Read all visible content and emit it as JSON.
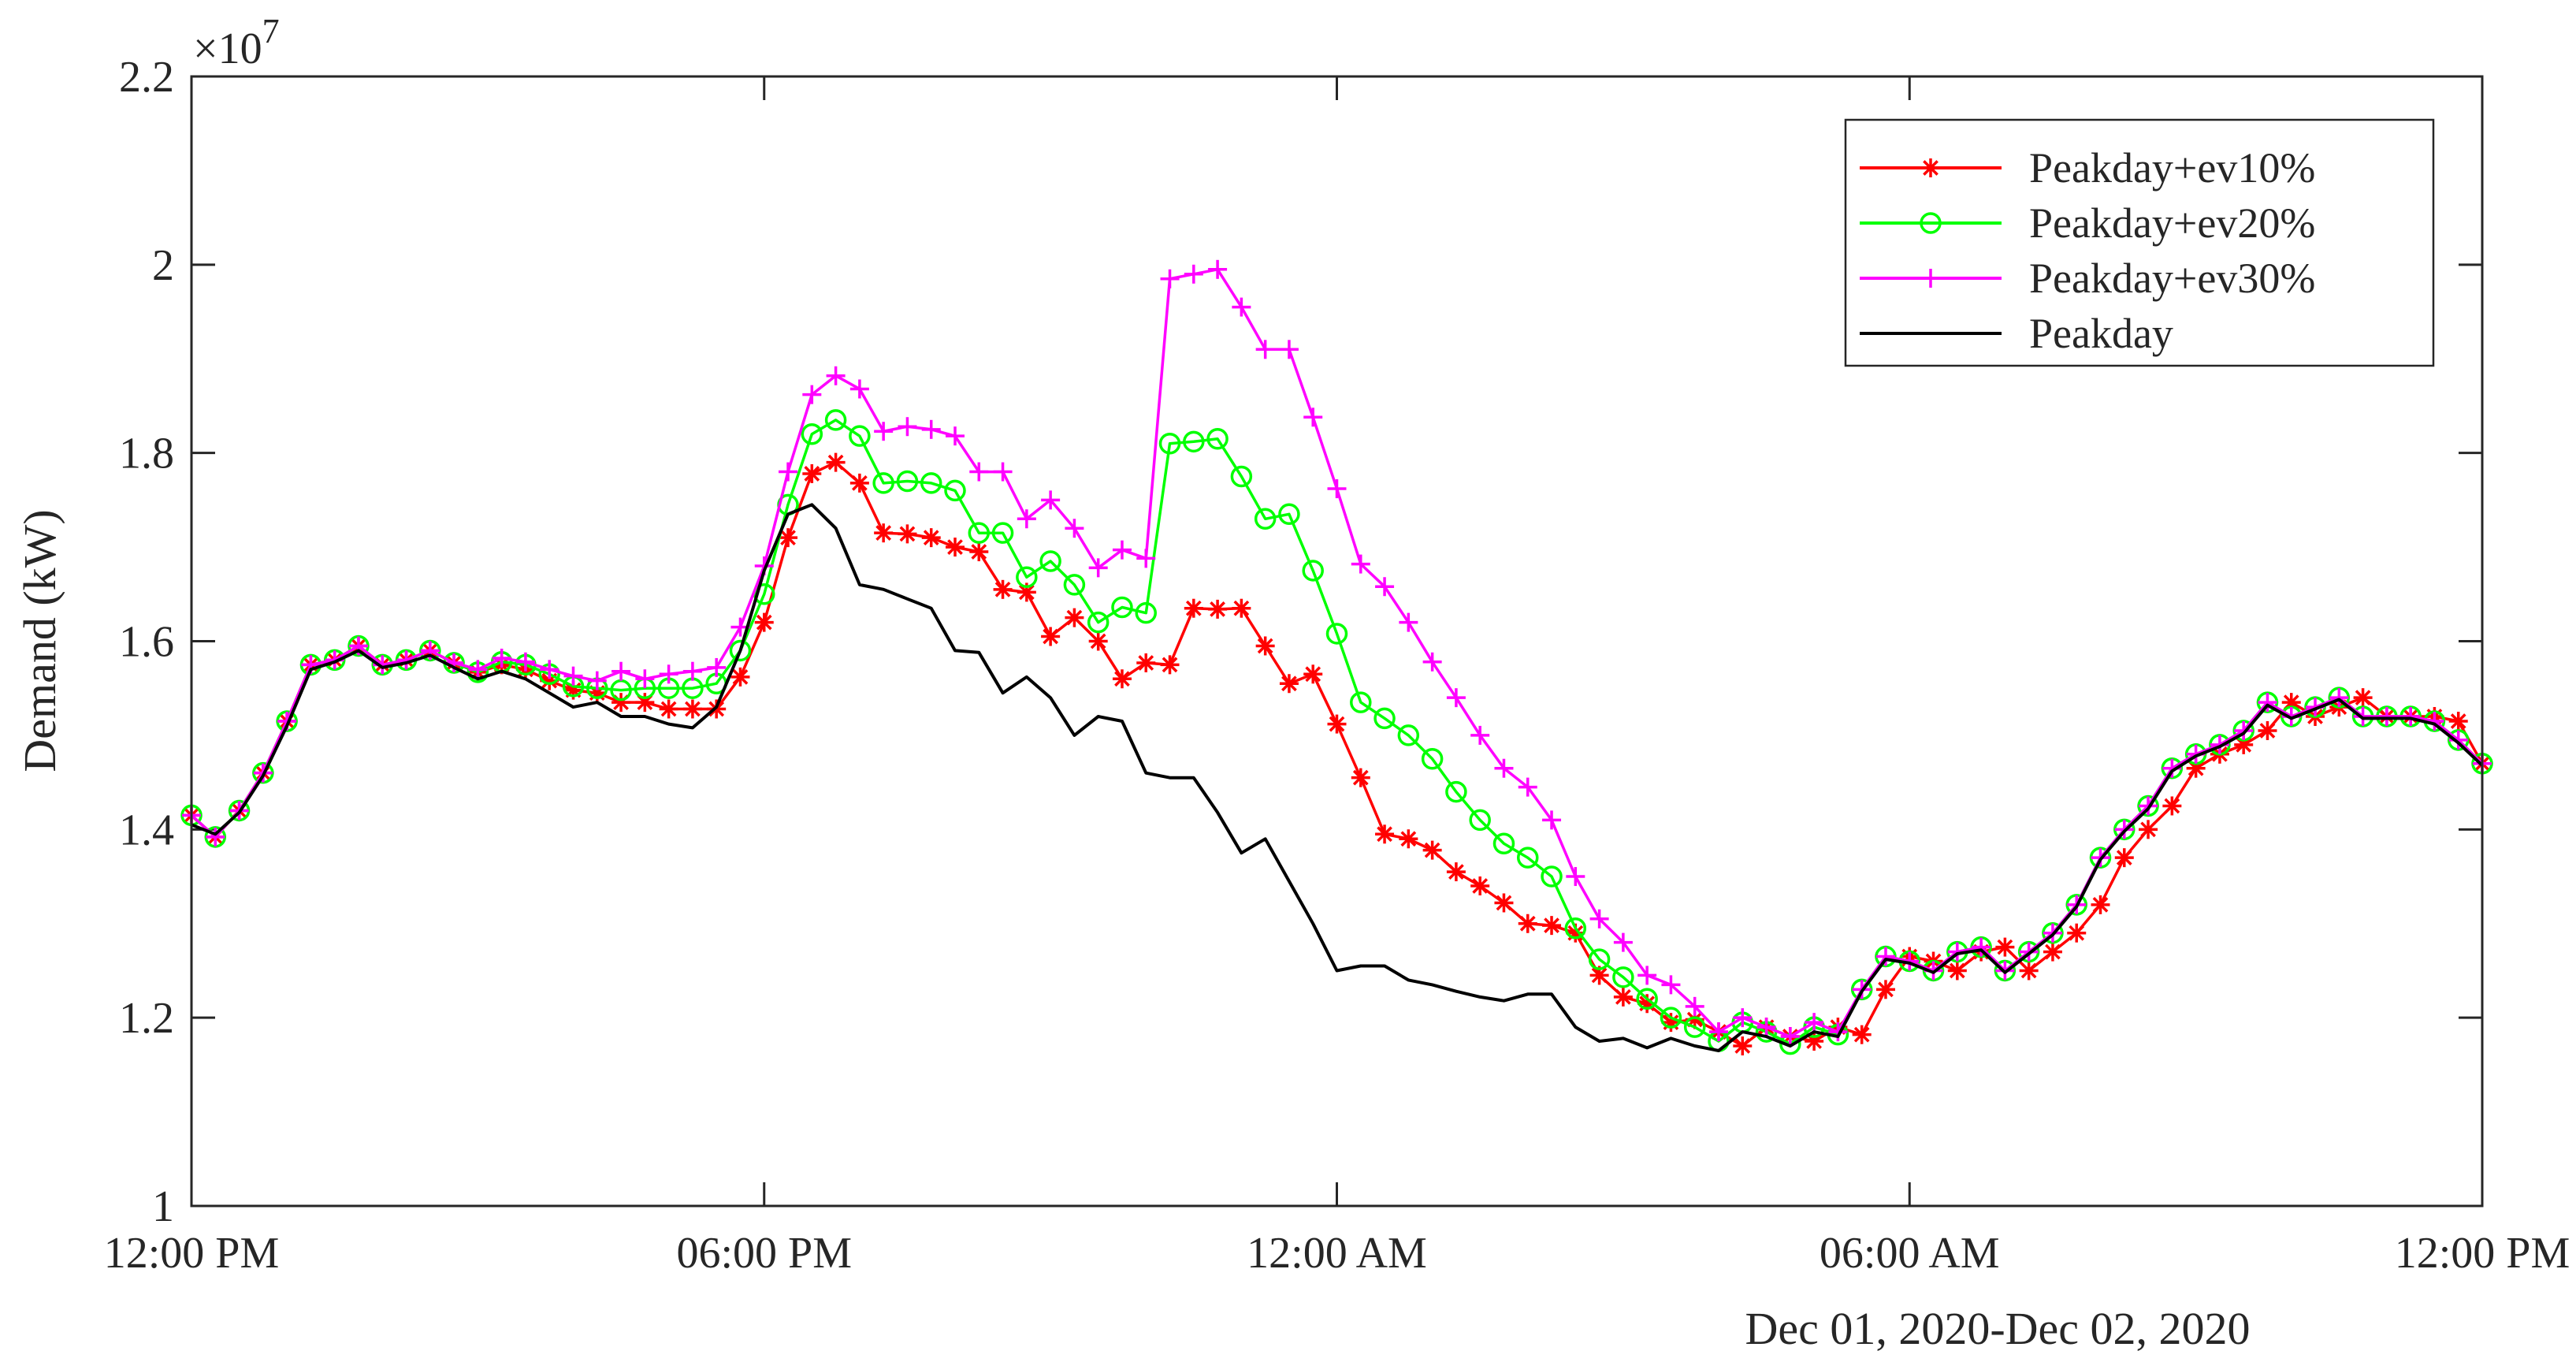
{
  "chart_data": {
    "type": "line",
    "title": "",
    "xlabel": "Dec 01, 2020-Dec 02, 2020",
    "ylabel": "Demand (kW)",
    "y_multiplier_label": "×10",
    "y_multiplier_exponent": "7",
    "xlim": [
      0,
      96
    ],
    "ylim": [
      1.0,
      2.2
    ],
    "x_ticks": [
      {
        "x": 0,
        "label": "12:00 PM"
      },
      {
        "x": 24,
        "label": "06:00 PM"
      },
      {
        "x": 48,
        "label": "12:00 AM"
      },
      {
        "x": 72,
        "label": "06:00 AM"
      },
      {
        "x": 96,
        "label": "12:00 PM"
      }
    ],
    "y_ticks": [
      {
        "y": 1.0,
        "label": "1"
      },
      {
        "y": 1.2,
        "label": "1.2"
      },
      {
        "y": 1.4,
        "label": "1.4"
      },
      {
        "y": 1.6,
        "label": "1.6"
      },
      {
        "y": 1.8,
        "label": "1.8"
      },
      {
        "y": 2.0,
        "label": "2"
      },
      {
        "y": 2.2,
        "label": "2.2"
      }
    ],
    "legend_position": "top-right",
    "series": [
      {
        "name": "Peakday+ev10%",
        "color": "#ff0000",
        "marker": "asterisk",
        "values": [
          1.415,
          1.392,
          1.42,
          1.46,
          1.515,
          1.575,
          1.58,
          1.595,
          1.575,
          1.58,
          1.59,
          1.577,
          1.567,
          1.575,
          1.57,
          1.558,
          1.548,
          1.545,
          1.535,
          1.535,
          1.528,
          1.528,
          1.528,
          1.562,
          1.62,
          1.71,
          1.778,
          1.79,
          1.768,
          1.715,
          1.714,
          1.71,
          1.7,
          1.695,
          1.655,
          1.652,
          1.605,
          1.625,
          1.6,
          1.56,
          1.577,
          1.575,
          1.635,
          1.634,
          1.635,
          1.595,
          1.555,
          1.565,
          1.512,
          1.455,
          1.395,
          1.39,
          1.378,
          1.355,
          1.34,
          1.322,
          1.3,
          1.298,
          1.29,
          1.245,
          1.222,
          1.215,
          1.195,
          1.198,
          1.185,
          1.17,
          1.19,
          1.18,
          1.175,
          1.19,
          1.182,
          1.23,
          1.265,
          1.26,
          1.25,
          1.27,
          1.275,
          1.25,
          1.27,
          1.29,
          1.32,
          1.37,
          1.4,
          1.425,
          1.465,
          1.48,
          1.49,
          1.505,
          1.535,
          1.52,
          1.53,
          1.54,
          1.52,
          1.52,
          1.52,
          1.515,
          1.47
        ]
      },
      {
        "name": "Peakday+ev20%",
        "color": "#00ff00",
        "marker": "circle",
        "values": [
          1.415,
          1.392,
          1.42,
          1.46,
          1.515,
          1.575,
          1.58,
          1.595,
          1.575,
          1.58,
          1.59,
          1.577,
          1.567,
          1.578,
          1.575,
          1.565,
          1.552,
          1.55,
          1.548,
          1.55,
          1.55,
          1.55,
          1.555,
          1.59,
          1.65,
          1.745,
          1.82,
          1.835,
          1.818,
          1.768,
          1.77,
          1.768,
          1.76,
          1.715,
          1.715,
          1.668,
          1.685,
          1.66,
          1.62,
          1.636,
          1.63,
          1.81,
          1.812,
          1.815,
          1.775,
          1.73,
          1.735,
          1.675,
          1.608,
          1.535,
          1.518,
          1.5,
          1.475,
          1.44,
          1.41,
          1.385,
          1.37,
          1.35,
          1.295,
          1.262,
          1.243,
          1.22,
          1.2,
          1.19,
          1.175,
          1.195,
          1.185,
          1.172,
          1.19,
          1.182,
          1.23,
          1.265,
          1.26,
          1.25,
          1.27,
          1.275,
          1.25,
          1.27,
          1.29,
          1.32,
          1.37,
          1.4,
          1.425,
          1.465,
          1.48,
          1.49,
          1.505,
          1.535,
          1.52,
          1.53,
          1.54,
          1.52,
          1.52,
          1.52,
          1.515,
          1.495,
          1.47
        ]
      },
      {
        "name": "Peakday+ev30%",
        "color": "#ff00ff",
        "marker": "plus",
        "values": [
          1.415,
          1.392,
          1.42,
          1.46,
          1.515,
          1.575,
          1.58,
          1.595,
          1.575,
          1.58,
          1.59,
          1.577,
          1.57,
          1.582,
          1.578,
          1.57,
          1.563,
          1.558,
          1.568,
          1.56,
          1.565,
          1.568,
          1.572,
          1.615,
          1.68,
          1.78,
          1.862,
          1.882,
          1.868,
          1.823,
          1.828,
          1.825,
          1.818,
          1.78,
          1.78,
          1.73,
          1.75,
          1.72,
          1.678,
          1.697,
          1.688,
          1.985,
          1.99,
          1.995,
          1.955,
          1.91,
          1.91,
          1.838,
          1.762,
          1.682,
          1.658,
          1.62,
          1.578,
          1.54,
          1.5,
          1.465,
          1.445,
          1.41,
          1.35,
          1.305,
          1.28,
          1.245,
          1.235,
          1.212,
          1.185,
          1.2,
          1.19,
          1.18,
          1.195,
          1.185,
          1.23,
          1.265,
          1.26,
          1.25,
          1.27,
          1.275,
          1.25,
          1.27,
          1.29,
          1.32,
          1.37,
          1.4,
          1.425,
          1.465,
          1.48,
          1.49,
          1.505,
          1.535,
          1.52,
          1.53,
          1.54,
          1.52,
          1.52,
          1.52,
          1.515,
          1.495,
          1.47
        ]
      },
      {
        "name": "Peakday",
        "color": "#000000",
        "marker": "none",
        "values": [
          1.405,
          1.395,
          1.418,
          1.457,
          1.51,
          1.57,
          1.578,
          1.59,
          1.572,
          1.577,
          1.585,
          1.572,
          1.56,
          1.568,
          1.56,
          1.545,
          1.53,
          1.535,
          1.52,
          1.52,
          1.512,
          1.508,
          1.53,
          1.59,
          1.675,
          1.735,
          1.745,
          1.72,
          1.66,
          1.655,
          1.645,
          1.635,
          1.59,
          1.588,
          1.545,
          1.562,
          1.54,
          1.5,
          1.52,
          1.515,
          1.46,
          1.455,
          1.455,
          1.418,
          1.375,
          1.39,
          1.345,
          1.3,
          1.25,
          1.255,
          1.255,
          1.24,
          1.235,
          1.228,
          1.222,
          1.218,
          1.225,
          1.225,
          1.19,
          1.175,
          1.178,
          1.168,
          1.178,
          1.17,
          1.165,
          1.185,
          1.18,
          1.17,
          1.185,
          1.18,
          1.228,
          1.262,
          1.258,
          1.248,
          1.268,
          1.272,
          1.248,
          1.268,
          1.288,
          1.318,
          1.368,
          1.398,
          1.422,
          1.462,
          1.478,
          1.488,
          1.502,
          1.532,
          1.518,
          1.528,
          1.538,
          1.518,
          1.518,
          1.518,
          1.512,
          1.492,
          1.468
        ]
      }
    ]
  }
}
